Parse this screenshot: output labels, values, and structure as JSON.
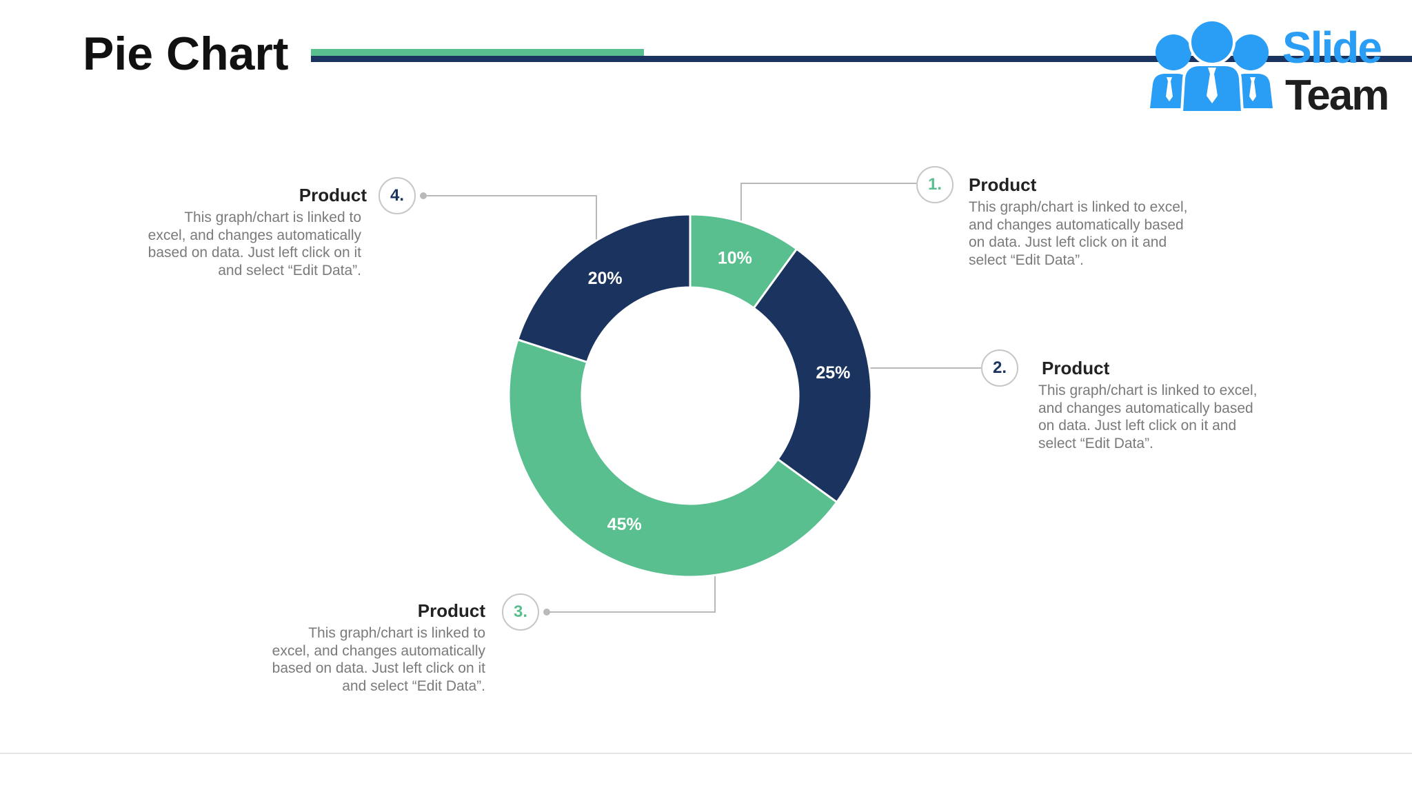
{
  "slide": {
    "title": "Pie Chart"
  },
  "theme": {
    "green": "#5ABF8F",
    "navy": "#1B335F"
  },
  "logo": {
    "word1": "Slide",
    "word2": "Team",
    "icon": "team-people-icon",
    "colors": {
      "blue": "#2A9DF4",
      "dark": "#1E1E1E"
    }
  },
  "chart_data": {
    "type": "pie",
    "donut": true,
    "categories": [
      "1.",
      "2.",
      "3.",
      "4."
    ],
    "values": [
      10,
      25,
      45,
      20
    ],
    "data_labels": [
      "10%",
      "25%",
      "45%",
      "20%"
    ],
    "colors": [
      "#5ABF8F",
      "#1B335F",
      "#5ABF8F",
      "#1B335F"
    ]
  },
  "callouts": [
    {
      "title": "Product",
      "lines": [
        "This graph/chart is linked to excel,",
        "and changes automatically based",
        "on data. Just left click on it and",
        "select “Edit Data”."
      ]
    },
    {
      "title": "Product",
      "lines": [
        "This graph/chart is linked to excel,",
        "and changes automatically based",
        "on data. Just left click on it and",
        "select “Edit Data”."
      ]
    },
    {
      "title": "Product",
      "lines": [
        "This graph/chart is linked to",
        "excel, and changes automatically",
        "based on data. Just left click on it",
        "and select “Edit Data”."
      ]
    },
    {
      "title": "Product",
      "lines": [
        "This graph/chart is linked to",
        "excel, and changes automatically",
        "based on data. Just left click on it",
        "and select “Edit Data”."
      ]
    }
  ]
}
